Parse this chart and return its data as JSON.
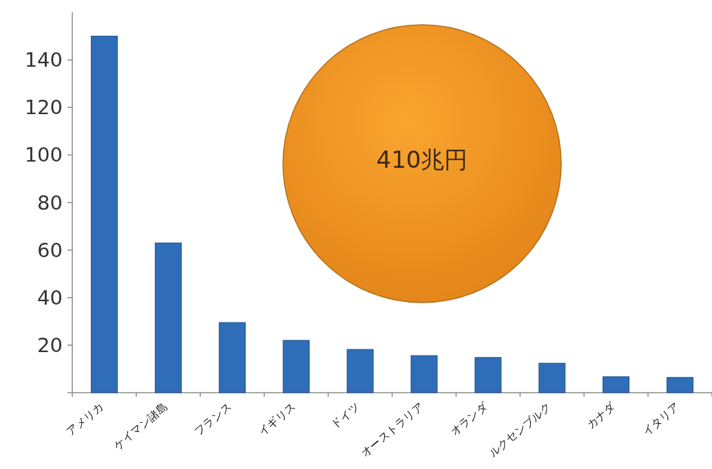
{
  "chart_data": {
    "type": "bar",
    "categories": [
      "アメリカ",
      "ケイマン諸島",
      "フランス",
      "イギリス",
      "ドイツ",
      "オーストラリア",
      "オランダ",
      "ルクセンブルク",
      "カナダ",
      "イタリア"
    ],
    "values": [
      150,
      63,
      29.5,
      22,
      18.2,
      15.6,
      14.8,
      12.4,
      6.7,
      6.4
    ],
    "color": "#2f6db8",
    "ylim": [
      0,
      160
    ],
    "yticks": [
      {
        "value": 0,
        "label": null
      },
      20,
      40,
      60,
      80,
      100,
      120,
      140
    ],
    "grid": false,
    "annotations": [
      "410兆円"
    ]
  }
}
